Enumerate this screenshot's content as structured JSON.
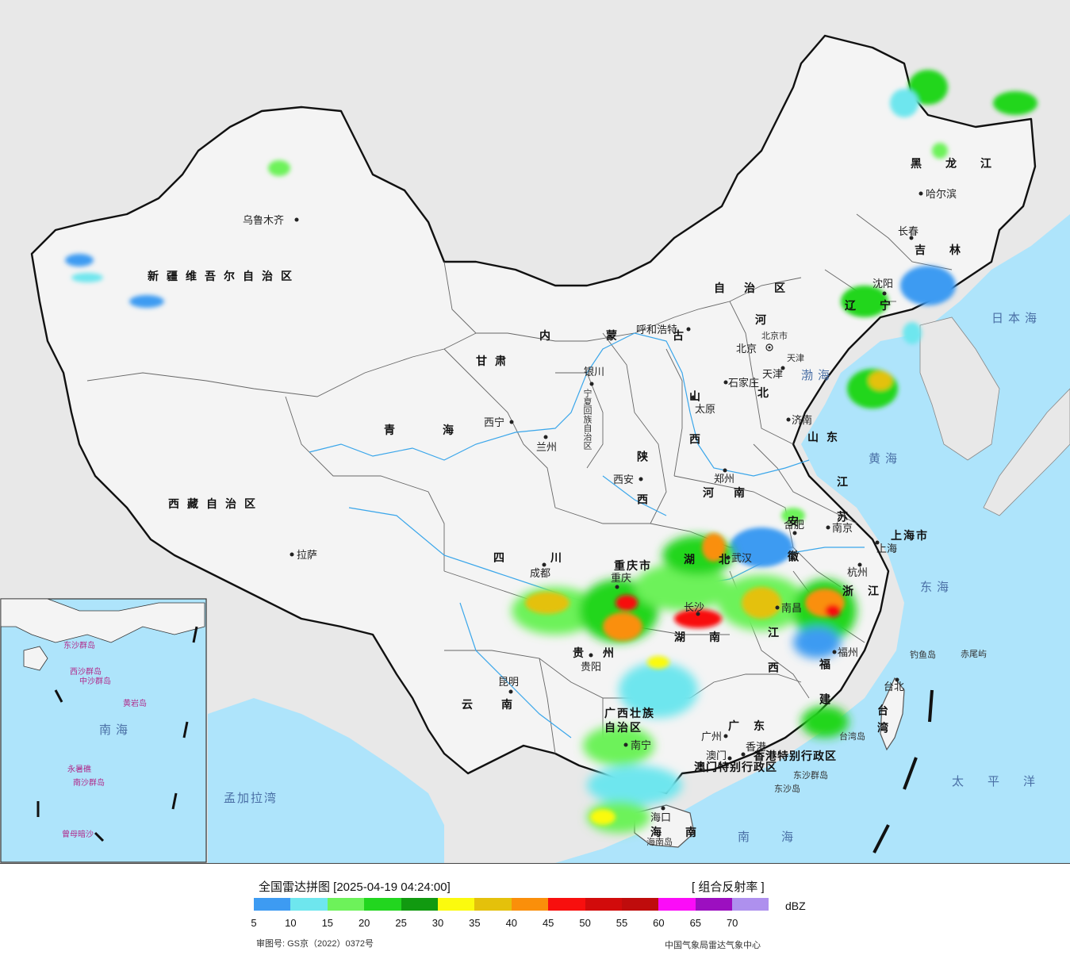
{
  "map": {
    "provinces": {
      "xinjiang": "新疆维吾尔自治区",
      "xizang": "西藏自治区",
      "qinghai": "青海",
      "gansu": "甘肃",
      "neimenggu_1": "内蒙古",
      "neimenggu_2": "自治区",
      "heilongjiang": "黑龙江",
      "jilin": "吉林",
      "liaoning": "辽宁",
      "hebei_1": "河",
      "hebei_2": "北",
      "shanxi": "山西",
      "shaanxi": "陕西",
      "henan": "河南",
      "shandong": "山东",
      "jiangsu": "江苏",
      "anhui": "安徽",
      "sichuan": "四川",
      "hubei": "湖北",
      "hunan": "湖南",
      "jiangxi": "江西",
      "zhejiang": "浙江",
      "fujian": "福建",
      "guizhou": "贵州",
      "yunnan": "云南",
      "guangxi_1": "广西壮族",
      "guangxi_2": "自治区",
      "guangdong": "广东",
      "taiwan": "台湾",
      "hainan": "海南",
      "ningxia": "宁夏回族自治区",
      "chongqing": "重庆市",
      "shanghai": "上海市",
      "beijing_shi": "北京市",
      "tianjin_shi": "天津",
      "hk_sar": "香港特别行政区",
      "macau_sar": "澳门特别行政区"
    },
    "cities": {
      "urumqi": "乌鲁木齐",
      "lhasa": "拉萨",
      "xining": "西宁",
      "lanzhou": "兰州",
      "yinchuan": "银川",
      "hohhot": "呼和浩特",
      "beijing": "北京",
      "tianjin": "天津",
      "shijiazhuang": "石家庄",
      "taiyuan": "太原",
      "jinan": "济南",
      "xian": "西安",
      "zhengzhou": "郑州",
      "harbin": "哈尔滨",
      "changchun": "长春",
      "shenyang": "沈阳",
      "hefei": "合肥",
      "nanjing": "南京",
      "shanghai": "上海",
      "hangzhou": "杭州",
      "wuhan": "武汉",
      "chengdu": "成都",
      "chongqing": "重庆",
      "changsha": "长沙",
      "nanchang": "南昌",
      "fuzhou": "福州",
      "guiyang": "贵阳",
      "kunming": "昆明",
      "nanning": "南宁",
      "guangzhou": "广州",
      "hongkong": "香港",
      "macau": "澳门",
      "taipei": "台北",
      "haikou": "海口"
    },
    "seas": {
      "bohai": "渤海",
      "huanghai": "黄海",
      "donghai": "东海",
      "nanhai": "南海",
      "ribenhai": "日本海",
      "taipingyang": "太平洋",
      "mengjialawan": "孟加拉湾"
    },
    "islands": {
      "diaoyudao": "钓鱼岛",
      "chiweiyu": "赤尾屿",
      "taiwandao": "台湾岛",
      "hainandao": "海南岛",
      "dongshaqundao": "东沙群岛",
      "dongshadao": "东沙岛"
    },
    "inset": {
      "sea": "南海",
      "xisha": "西沙群岛",
      "zhongsha": "中沙群岛",
      "huangyan": "黄岩岛",
      "nansha": "南沙群岛",
      "zengmu": "曾母暗沙",
      "dongsha": "东沙群岛",
      "yongshu": "永暑礁"
    }
  },
  "legend": {
    "title": "全国雷达拼图 [2025-04-19 04:24:00]",
    "product": "[ 组合反射率 ]",
    "unit": "dBZ",
    "colors": [
      "#3d9bf2",
      "#6ee6ee",
      "#6df25a",
      "#22d61f",
      "#119a10",
      "#fbfa0e",
      "#e4c10b",
      "#fa8f0a",
      "#f80f0e",
      "#d20b0b",
      "#bf0c0c",
      "#fb0cf8",
      "#9c0fc0",
      "#ae90ee"
    ],
    "ticks": [
      "5",
      "10",
      "15",
      "20",
      "25",
      "30",
      "35",
      "40",
      "45",
      "50",
      "55",
      "60",
      "65",
      "70"
    ],
    "approval": "审图号: GS京（2022）0372号",
    "source": "中国气象局雷达气象中心"
  }
}
